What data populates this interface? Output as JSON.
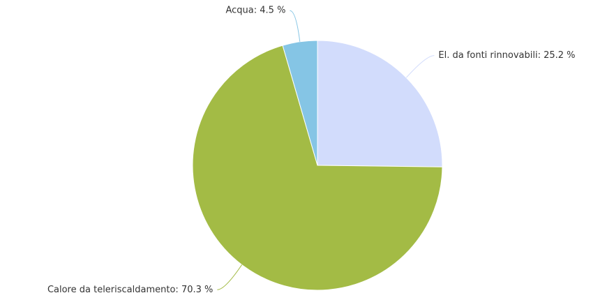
{
  "chart_data": {
    "type": "pie",
    "labels": [
      "El. da fonti rinnovabili: 25.2 %",
      "Calore da teleriscaldamento: 70.3 %",
      "Acqua: 4.5 %"
    ],
    "values": [
      25.2,
      70.3,
      4.5
    ],
    "colors": [
      "#d2dcfc",
      "#a3bb45",
      "#85c5e5"
    ]
  }
}
